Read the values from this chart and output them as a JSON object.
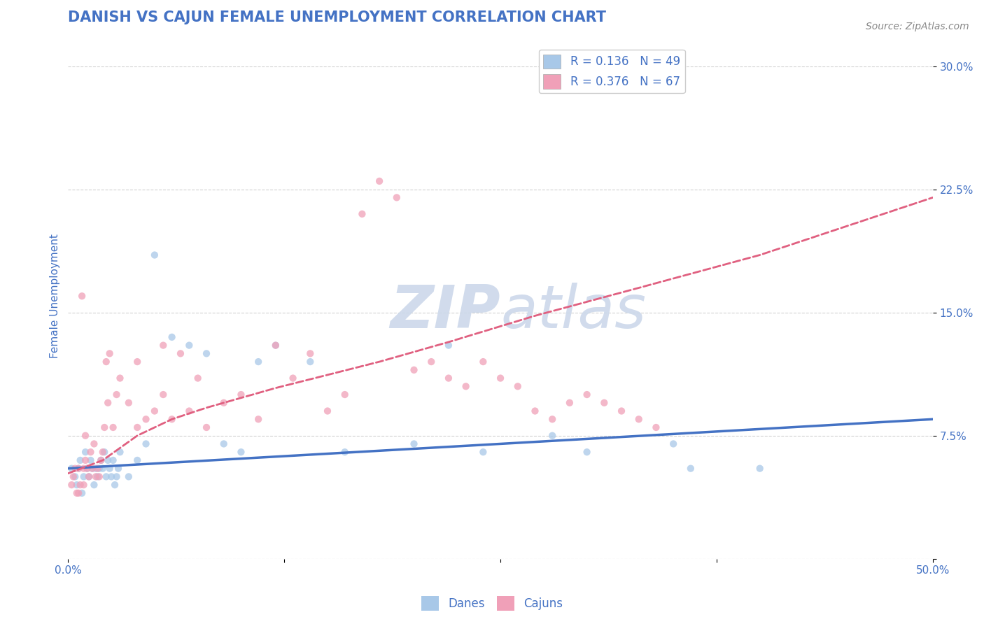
{
  "title": "DANISH VS CAJUN FEMALE UNEMPLOYMENT CORRELATION CHART",
  "source": "Source: ZipAtlas.com",
  "xlabel": "",
  "ylabel": "Female Unemployment",
  "xlim": [
    0.0,
    50.0
  ],
  "ylim": [
    0.0,
    32.0
  ],
  "yticks": [
    0.0,
    7.5,
    15.0,
    22.5,
    30.0
  ],
  "xticks": [
    0.0,
    12.5,
    25.0,
    37.5,
    50.0
  ],
  "xtick_labels": [
    "0.0%",
    "",
    "",
    "",
    "50.0%"
  ],
  "ytick_labels": [
    "",
    "7.5%",
    "15.0%",
    "22.5%",
    "30.0%"
  ],
  "legend_r1": "R = 0.136   N = 49",
  "legend_r2": "R = 0.376   N = 67",
  "danes_color": "#a8c8e8",
  "cajuns_color": "#f0a0b8",
  "danes_line_color": "#4472c4",
  "cajuns_line_color": "#e06080",
  "title_color": "#4472c4",
  "axis_color": "#4472c4",
  "tick_color": "#4472c4",
  "background_color": "#ffffff",
  "grid_color": "#cccccc",
  "danes_scatter_x": [
    0.2,
    0.4,
    0.5,
    0.6,
    0.7,
    0.8,
    0.9,
    1.0,
    1.1,
    1.2,
    1.3,
    1.4,
    1.5,
    1.6,
    1.7,
    1.8,
    1.9,
    2.0,
    2.1,
    2.2,
    2.3,
    2.4,
    2.5,
    2.6,
    2.7,
    2.8,
    2.9,
    3.0,
    3.5,
    4.0,
    4.5,
    5.0,
    6.0,
    7.0,
    8.0,
    9.0,
    10.0,
    11.0,
    12.0,
    14.0,
    16.0,
    20.0,
    22.0,
    24.0,
    28.0,
    30.0,
    35.0,
    36.0,
    40.0
  ],
  "danes_scatter_y": [
    5.5,
    5.0,
    4.5,
    5.5,
    6.0,
    4.0,
    5.0,
    6.5,
    5.5,
    5.0,
    6.0,
    5.5,
    4.5,
    5.5,
    5.0,
    5.5,
    6.0,
    5.5,
    6.5,
    5.0,
    6.0,
    5.5,
    5.0,
    6.0,
    4.5,
    5.0,
    5.5,
    6.5,
    5.0,
    6.0,
    7.0,
    18.5,
    13.5,
    13.0,
    12.5,
    7.0,
    6.5,
    12.0,
    13.0,
    12.0,
    6.5,
    7.0,
    13.0,
    6.5,
    7.5,
    6.5,
    7.0,
    5.5,
    5.5
  ],
  "cajuns_scatter_x": [
    0.2,
    0.3,
    0.4,
    0.5,
    0.6,
    0.7,
    0.8,
    0.9,
    1.0,
    1.1,
    1.2,
    1.3,
    1.4,
    1.5,
    1.6,
    1.7,
    1.8,
    1.9,
    2.0,
    2.2,
    2.4,
    2.6,
    2.8,
    3.0,
    3.5,
    4.0,
    4.5,
    5.0,
    5.5,
    6.0,
    6.5,
    7.0,
    7.5,
    8.0,
    9.0,
    10.0,
    11.0,
    12.0,
    13.0,
    14.0,
    15.0,
    16.0,
    17.0,
    18.0,
    19.0,
    20.0,
    21.0,
    22.0,
    23.0,
    24.0,
    25.0,
    26.0,
    27.0,
    28.0,
    29.0,
    30.0,
    31.0,
    32.0,
    33.0,
    34.0,
    2.1,
    1.0,
    0.9,
    2.3,
    0.6,
    4.0,
    5.5
  ],
  "cajuns_scatter_y": [
    4.5,
    5.0,
    5.5,
    4.0,
    5.5,
    4.5,
    16.0,
    5.5,
    6.0,
    5.5,
    5.0,
    6.5,
    5.5,
    7.0,
    5.0,
    5.5,
    5.0,
    6.0,
    6.5,
    12.0,
    12.5,
    8.0,
    10.0,
    11.0,
    9.5,
    12.0,
    8.5,
    9.0,
    10.0,
    8.5,
    12.5,
    9.0,
    11.0,
    8.0,
    9.5,
    10.0,
    8.5,
    13.0,
    11.0,
    12.5,
    9.0,
    10.0,
    21.0,
    23.0,
    22.0,
    11.5,
    12.0,
    11.0,
    10.5,
    12.0,
    11.0,
    10.5,
    9.0,
    8.5,
    9.5,
    10.0,
    9.5,
    9.0,
    8.5,
    8.0,
    8.0,
    7.5,
    4.5,
    9.5,
    4.0,
    8.0,
    13.0
  ],
  "danes_trend_x": [
    0.0,
    5.0,
    10.0,
    15.0,
    20.0,
    25.0,
    30.0,
    35.0,
    40.0,
    45.0,
    50.0
  ],
  "danes_trend_y": [
    5.5,
    5.8,
    6.1,
    6.4,
    6.7,
    7.0,
    7.3,
    7.6,
    7.9,
    8.2,
    8.5
  ],
  "cajuns_trend_x": [
    0.0,
    2.0,
    4.0,
    6.0,
    8.0,
    10.0,
    12.0,
    15.0,
    18.0,
    22.0,
    27.0,
    33.0,
    40.0,
    50.0
  ],
  "cajuns_trend_y": [
    5.2,
    6.0,
    7.5,
    8.5,
    9.2,
    9.8,
    10.4,
    11.2,
    12.0,
    13.2,
    14.8,
    16.5,
    18.5,
    22.0
  ],
  "watermark_line1": "ZIP",
  "watermark_line2": "atlas",
  "watermark_color": "#ccd8ea",
  "scatter_size": 55,
  "scatter_alpha": 0.75,
  "title_fontsize": 15,
  "axis_label_fontsize": 11,
  "tick_fontsize": 11,
  "legend_fontsize": 12,
  "source_fontsize": 10
}
